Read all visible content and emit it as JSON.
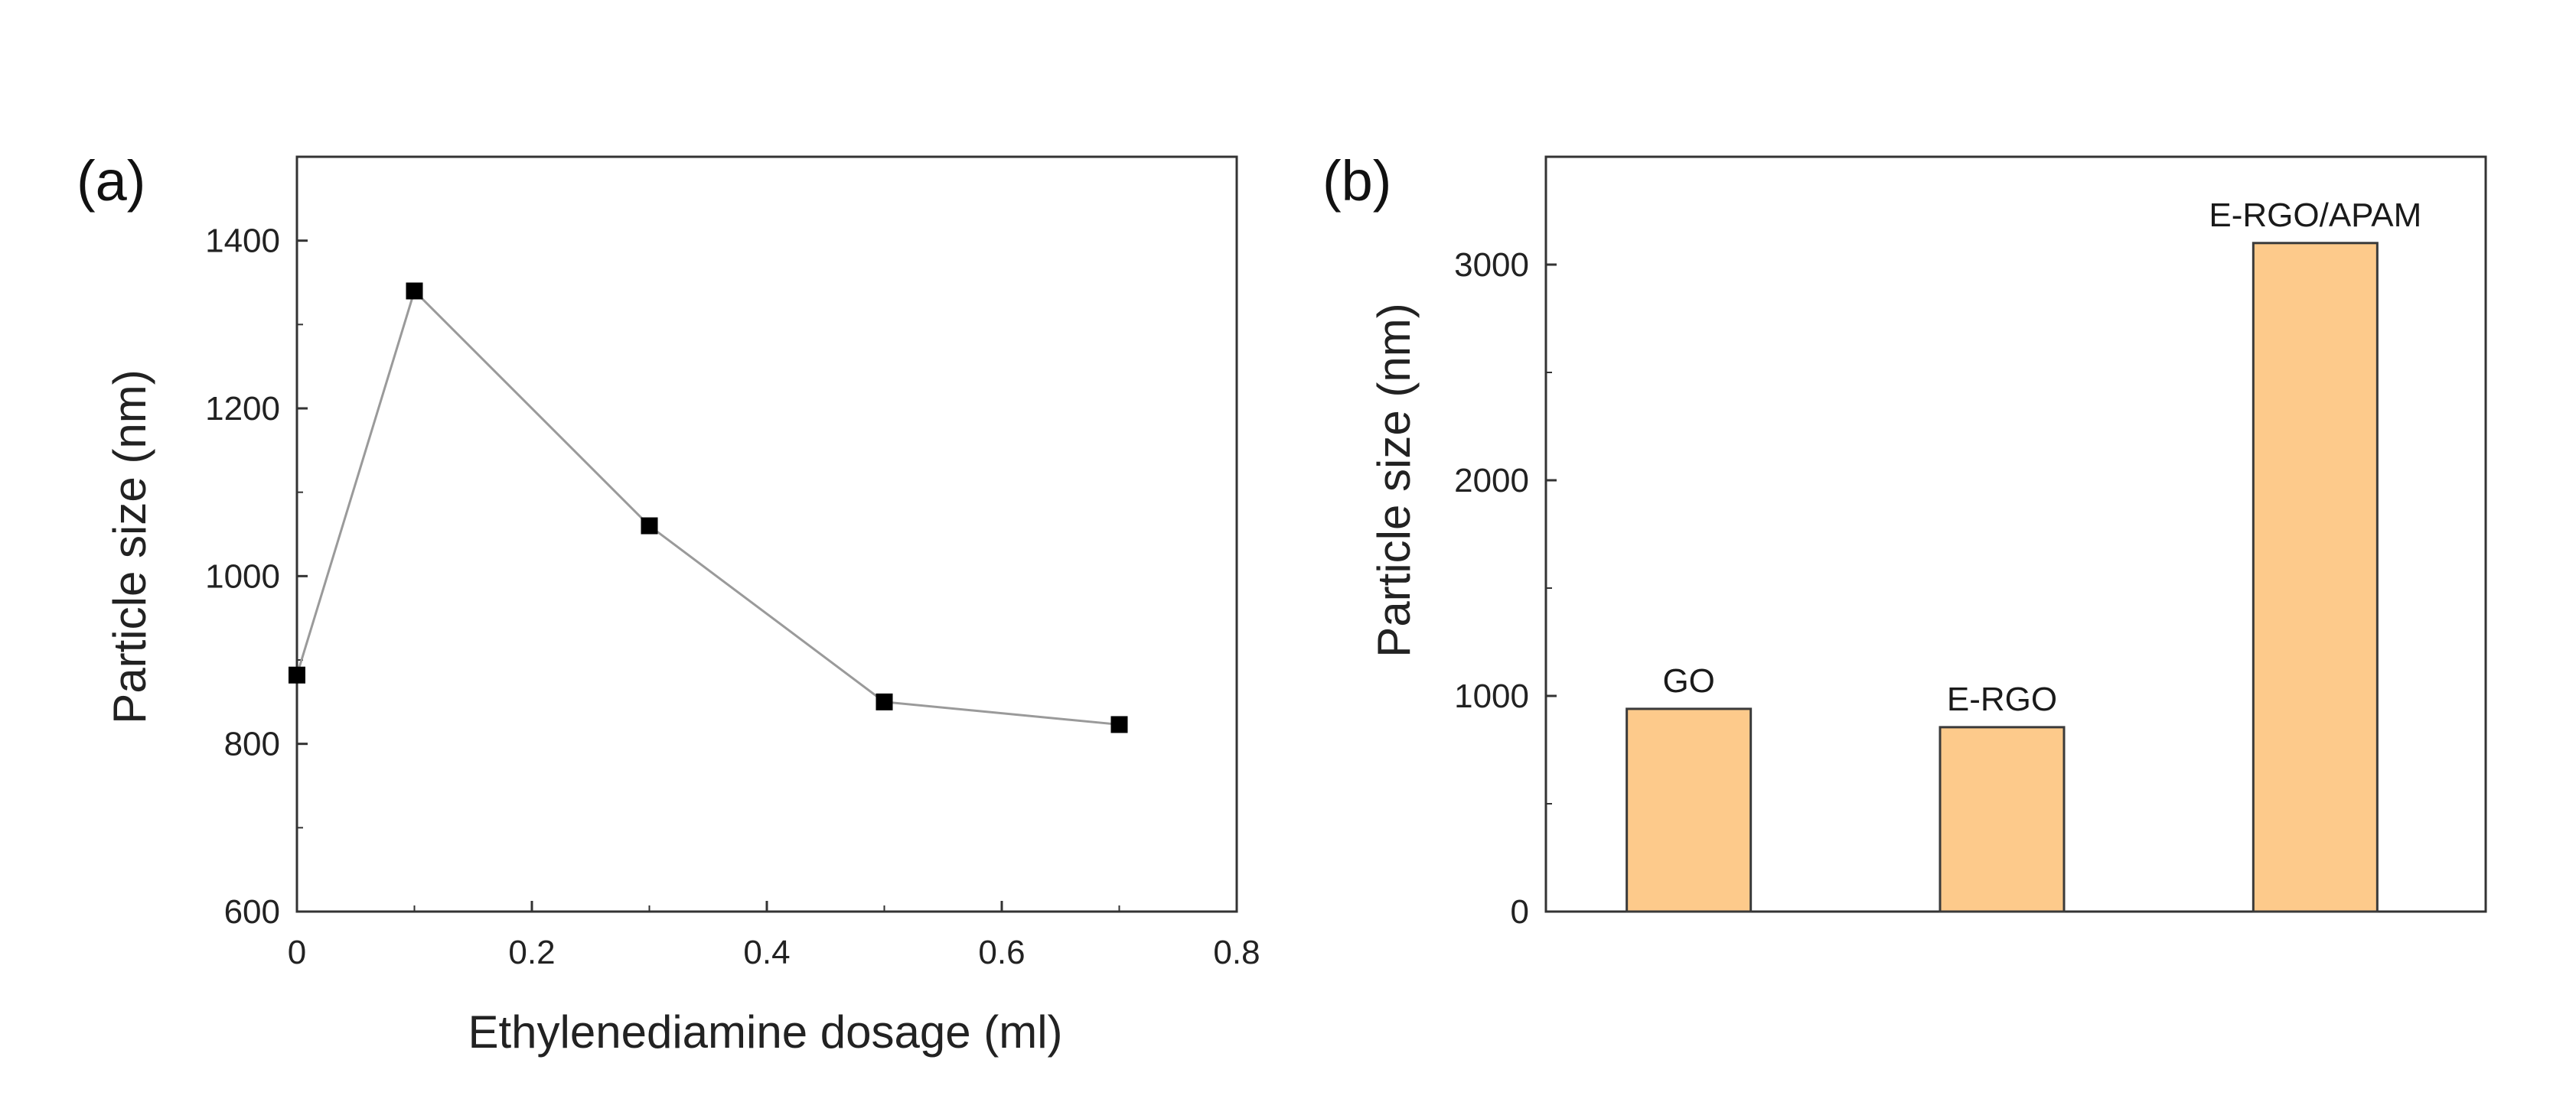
{
  "chart_data": [
    {
      "panel_label": "(a)",
      "type": "line",
      "title": "",
      "xlabel": "Ethylenediamine dosage (ml)",
      "ylabel": "Particle size (nm)",
      "xlim": [
        0,
        0.8
      ],
      "ylim": [
        600,
        1500
      ],
      "xticks": [
        0,
        0.2,
        0.4,
        0.6,
        0.8
      ],
      "xtick_labels": [
        "0",
        "0.2",
        "0.4",
        "0.6",
        "0.8"
      ],
      "yticks": [
        600,
        800,
        1000,
        1200,
        1400
      ],
      "ytick_labels": [
        "600",
        "800",
        "1000",
        "1200",
        "1400"
      ],
      "grid": false,
      "series": [
        {
          "name": "Particle size",
          "marker": "square",
          "x": [
            0,
            0.1,
            0.3,
            0.5,
            0.7
          ],
          "y": [
            882,
            1340,
            1060,
            850,
            823
          ]
        }
      ],
      "colors": {
        "line": "#9a9a9a",
        "marker": "#000000",
        "axis": "#333333"
      }
    },
    {
      "panel_label": "(b)",
      "type": "bar",
      "title": "",
      "xlabel": "",
      "ylabel": "Particle size (nm)",
      "ylim": [
        0,
        3500
      ],
      "yticks": [
        0,
        1000,
        2000,
        3000
      ],
      "ytick_labels": [
        "0",
        "1000",
        "2000",
        "3000"
      ],
      "grid": false,
      "categories": [
        "GO",
        "E-RGO",
        "E-RGO/APAM"
      ],
      "values": [
        940,
        855,
        3100
      ],
      "colors": {
        "bar_fill": "#fdca8b",
        "bar_stroke": "#3a3a3a",
        "axis": "#333333"
      }
    }
  ]
}
